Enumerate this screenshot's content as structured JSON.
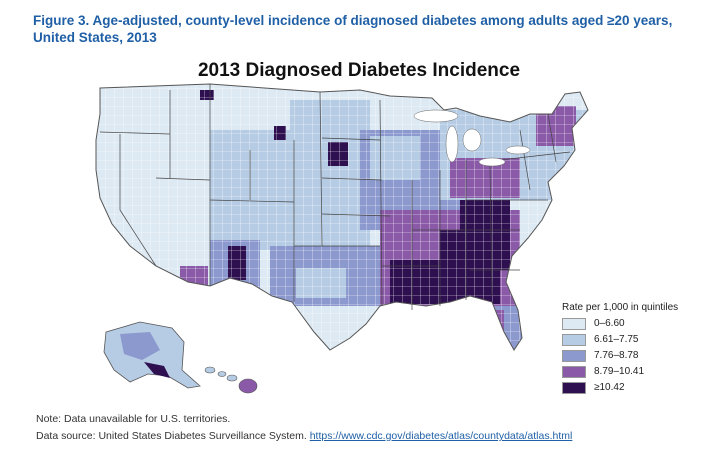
{
  "figure": {
    "caption": "Figure 3. Age-adjusted, county-level incidence of diagnosed diabetes among adults aged ≥20 years, United States, 2013",
    "title": "2013 Diagnosed Diabetes Incidence"
  },
  "legend": {
    "title": "Rate per 1,000 in quintiles",
    "items": [
      {
        "label": "0–6.60",
        "color": "#dde9f3"
      },
      {
        "label": "6.61–7.75",
        "color": "#b6cce4"
      },
      {
        "label": "7.76–8.78",
        "color": "#8c99cf"
      },
      {
        "label": "8.79–10.41",
        "color": "#8a5aa8"
      },
      {
        "label": "≥10.42",
        "color": "#2e0f50"
      }
    ]
  },
  "footer": {
    "note": "Note: Data unavailable for U.S. territories.",
    "source_prefix": "Data source: United States Diabetes Surveillance System. ",
    "source_link": "https://www.cdc.gov/diabetes/atlas/countydata/atlas.html"
  }
}
